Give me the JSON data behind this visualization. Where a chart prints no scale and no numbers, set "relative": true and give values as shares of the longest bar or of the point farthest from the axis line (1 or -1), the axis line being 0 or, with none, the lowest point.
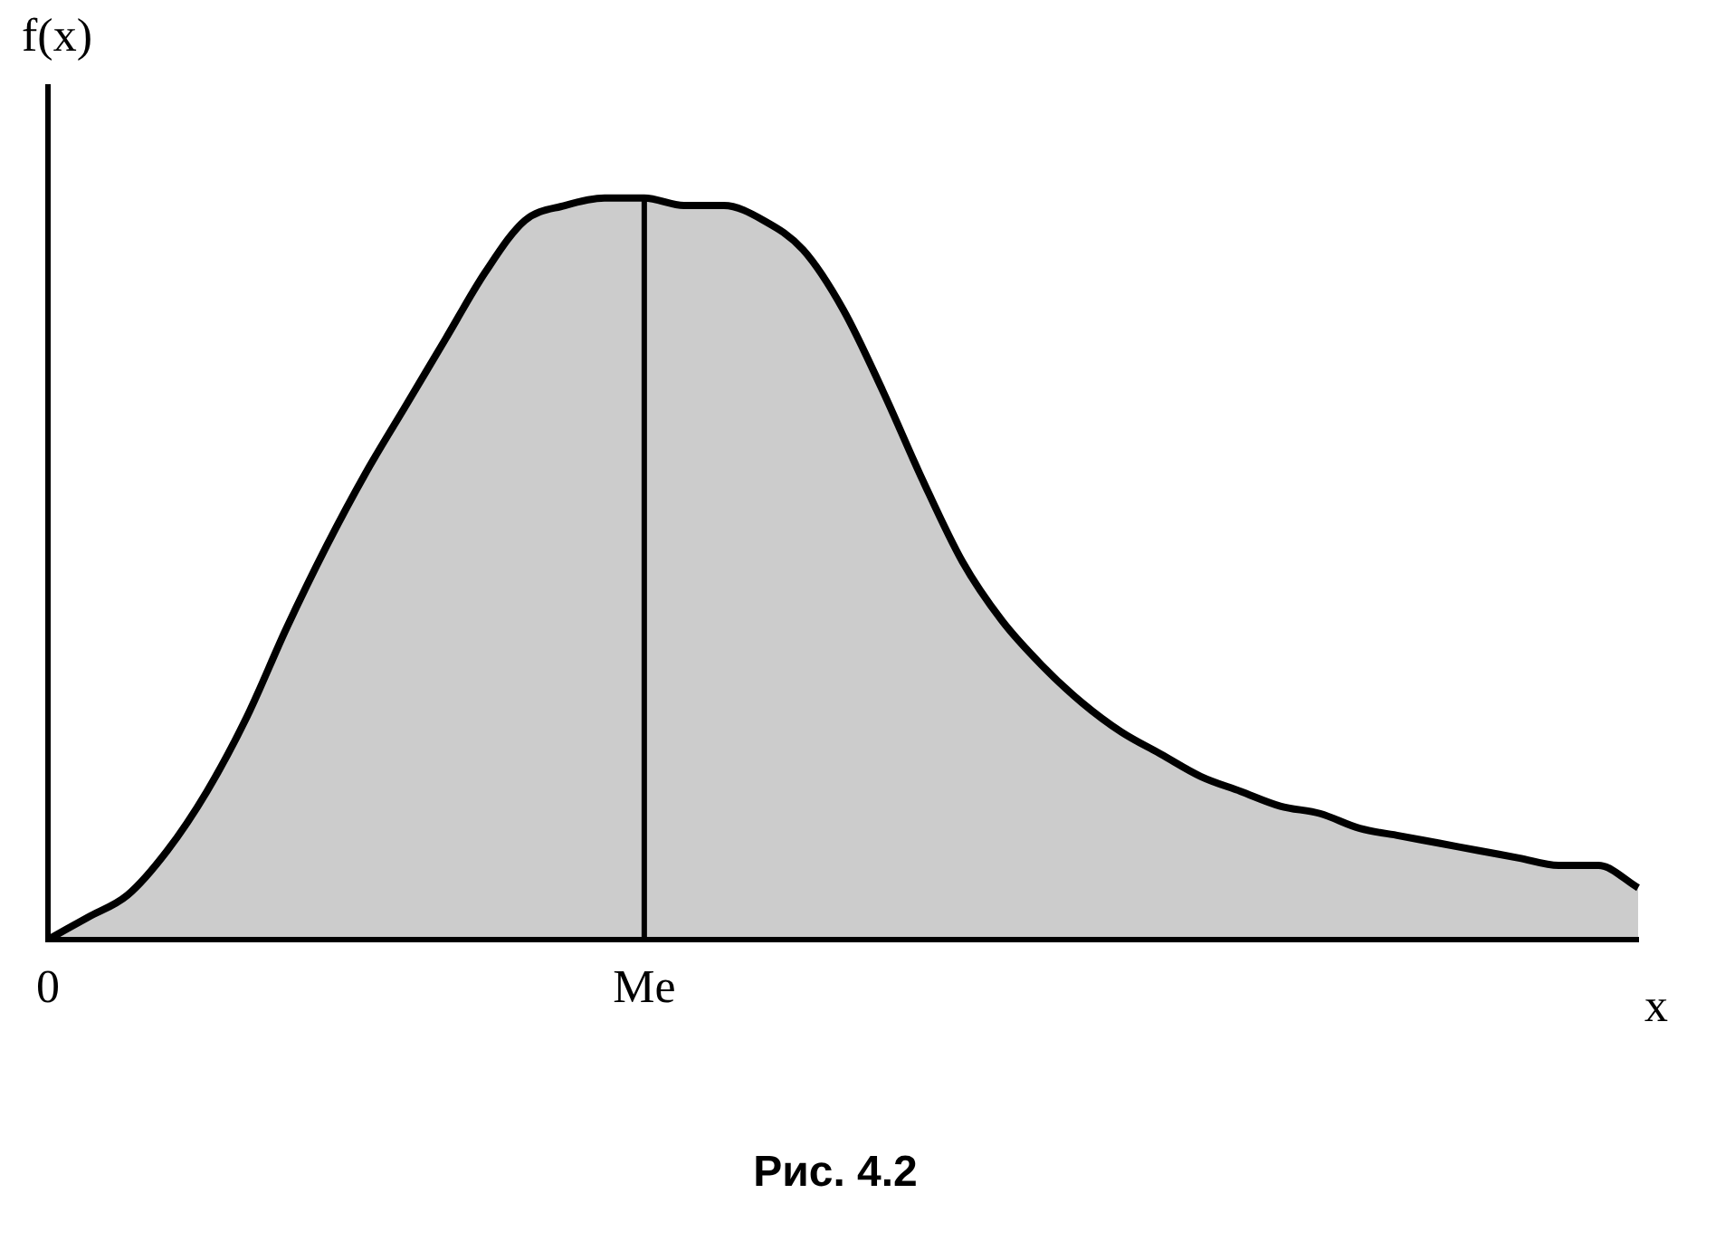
{
  "chart_data": {
    "type": "area",
    "relative": true,
    "title": "Рис. 4.2",
    "xlabel": "x",
    "ylabel": "f(x)",
    "categories": [
      "0",
      null,
      null,
      null,
      null,
      null,
      null,
      null,
      null,
      null,
      null,
      null,
      null,
      null,
      null,
      "Me",
      null,
      null,
      null,
      null,
      null,
      null,
      null,
      null,
      null,
      null,
      null,
      null,
      null,
      null,
      null,
      null,
      null,
      null,
      null,
      null,
      null,
      null,
      null,
      null,
      null
    ],
    "series": [
      {
        "color": "#000000",
        "values": [
          0,
          0.03,
          0.06,
          0.12,
          0.2,
          0.3,
          0.42,
          0.53,
          0.63,
          0.72,
          0.81,
          0.9,
          0.97,
          0.99,
          1,
          1,
          0.99,
          0.99,
          0.97,
          0.93,
          0.85,
          0.74,
          0.62,
          0.51,
          0.43,
          0.37,
          0.32,
          0.28,
          0.25,
          0.22,
          0.2,
          0.18,
          0.17,
          0.15,
          0.14,
          0.13,
          0.12,
          0.11,
          0.1,
          0.1,
          0.07
        ]
      }
    ],
    "ref_lines": [
      {
        "axis": "x",
        "value": "Me"
      }
    ],
    "grid": false,
    "legend": false
  }
}
